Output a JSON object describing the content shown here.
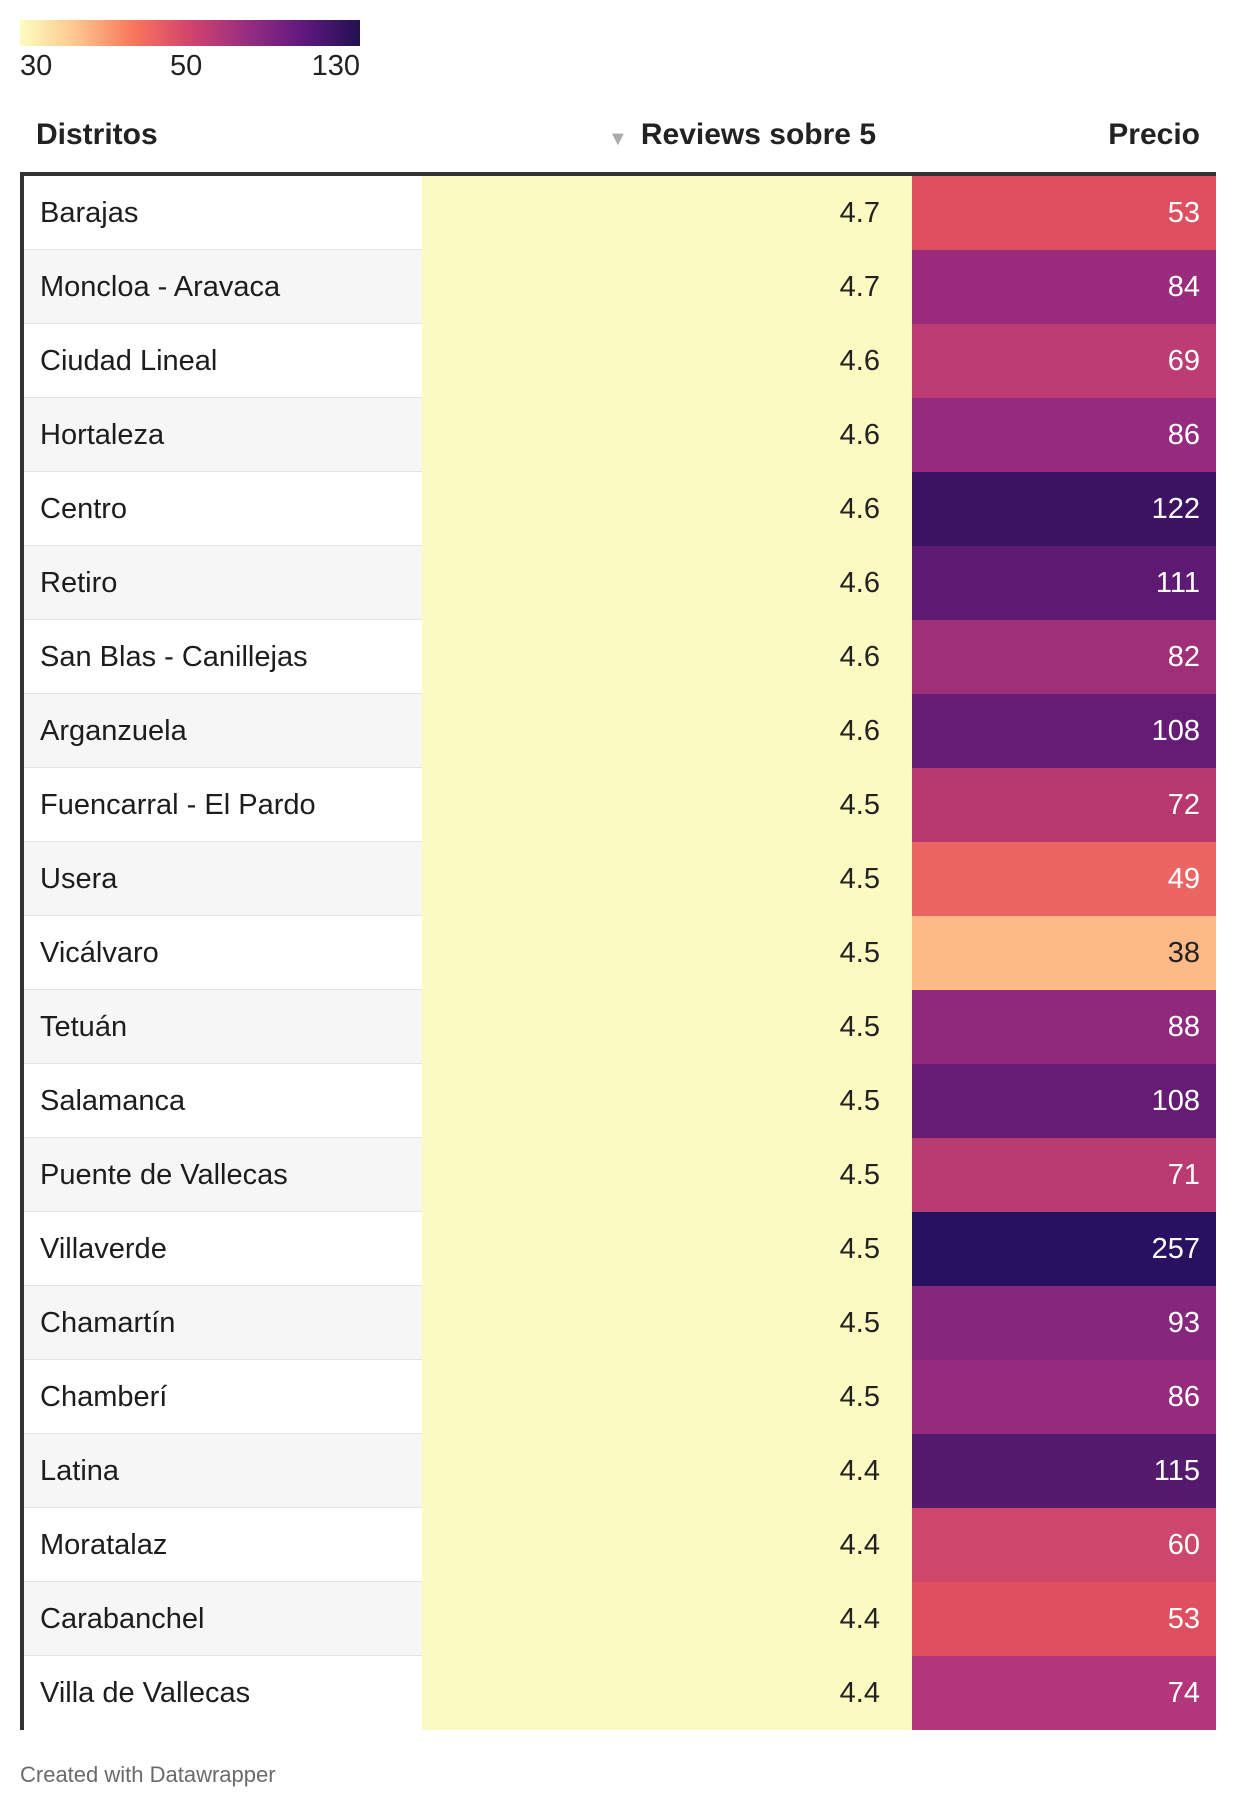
{
  "legend": {
    "ticks": [
      "30",
      "50",
      "130"
    ],
    "gradient": [
      "#fcfdbf",
      "#fdc58d",
      "#f8765c",
      "#d3436e",
      "#982d80",
      "#5f187f",
      "#221150"
    ]
  },
  "table": {
    "headers": {
      "district": "Distritos",
      "reviews": "Reviews sobre 5",
      "price": "Precio"
    },
    "sort_indicator": "▼"
  },
  "chart_data": {
    "type": "table",
    "columns": [
      "Distritos",
      "Reviews sobre 5",
      "Precio"
    ],
    "color_scale": {
      "column": "Precio",
      "stops": [
        30,
        50,
        130
      ]
    },
    "rows": [
      {
        "district": "Barajas",
        "reviews": "4.7",
        "price": "53",
        "color": "#de5060"
      },
      {
        "district": "Moncloa - Aravaca",
        "reviews": "4.7",
        "price": "84",
        "color": "#9a2b7d"
      },
      {
        "district": "Ciudad Lineal",
        "reviews": "4.6",
        "price": "69",
        "color": "#bd3c74"
      },
      {
        "district": "Hortaleza",
        "reviews": "4.6",
        "price": "86",
        "color": "#952a7e"
      },
      {
        "district": "Centro",
        "reviews": "4.6",
        "price": "122",
        "color": "#3c1363"
      },
      {
        "district": "Retiro",
        "reviews": "4.6",
        "price": "111",
        "color": "#5e1a72"
      },
      {
        "district": "San Blas - Canillejas",
        "reviews": "4.6",
        "price": "82",
        "color": "#a02f7a"
      },
      {
        "district": "Arganzuela",
        "reviews": "4.6",
        "price": "108",
        "color": "#661c75"
      },
      {
        "district": "Fuencarral - El Pardo",
        "reviews": "4.5",
        "price": "72",
        "color": "#b7386f"
      },
      {
        "district": "Usera",
        "reviews": "4.5",
        "price": "49",
        "color": "#eb6663"
      },
      {
        "district": "Vicálvaro",
        "reviews": "4.5",
        "price": "38",
        "color": "#fdba86"
      },
      {
        "district": "Tetuán",
        "reviews": "4.5",
        "price": "88",
        "color": "#90297c"
      },
      {
        "district": "Salamanca",
        "reviews": "4.5",
        "price": "108",
        "color": "#661c75"
      },
      {
        "district": "Puente de Vallecas",
        "reviews": "4.5",
        "price": "71",
        "color": "#b93b71"
      },
      {
        "district": "Villaverde",
        "reviews": "4.5",
        "price": "257",
        "color": "#281160"
      },
      {
        "district": "Chamartín",
        "reviews": "4.5",
        "price": "93",
        "color": "#86267c"
      },
      {
        "district": "Chamberí",
        "reviews": "4.5",
        "price": "86",
        "color": "#952a7e"
      },
      {
        "district": "Latina",
        "reviews": "4.4",
        "price": "115",
        "color": "#541a6e"
      },
      {
        "district": "Moratalaz",
        "reviews": "4.4",
        "price": "60",
        "color": "#cd466c"
      },
      {
        "district": "Carabanchel",
        "reviews": "4.4",
        "price": "53",
        "color": "#de5060"
      },
      {
        "district": "Villa de Vallecas",
        "reviews": "4.4",
        "price": "74",
        "color": "#b3357a"
      }
    ]
  },
  "footer": {
    "credit": "Created with Datawrapper"
  }
}
